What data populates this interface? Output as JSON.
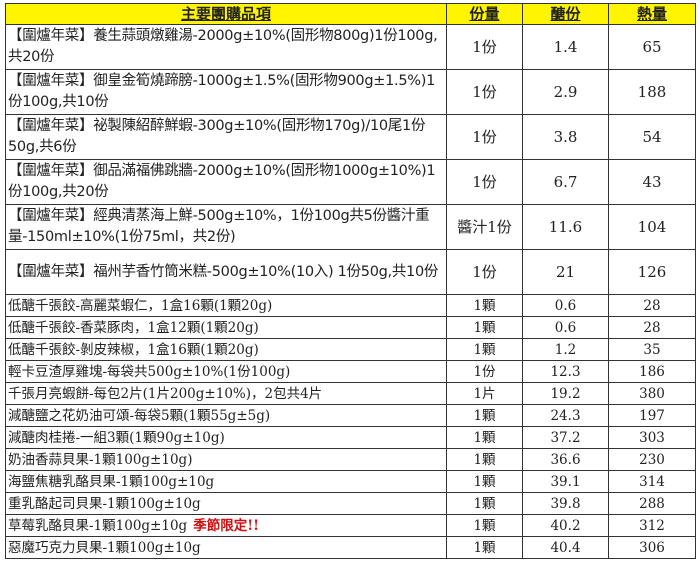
{
  "headers": [
    "主要團購品項",
    "份量",
    "醣份",
    "熱量"
  ],
  "colors": {
    "header_bg": "#fff500",
    "note": "#d01010"
  },
  "rows": [
    {
      "name": "【圍爐年菜】養生蒜頭燉雞湯-2000g±10%(固形物800g)1份100g,共20份",
      "portion": "1份",
      "sugar": "1.4",
      "calories": "65"
    },
    {
      "name": "【圍爐年菜】御皇金筍燒蹄膀-1000g±1.5%(固形物900g±1.5%)1份100g,共10份",
      "portion": "1份",
      "sugar": "2.9",
      "calories": "188"
    },
    {
      "name": "【圍爐年菜】祕製陳紹醉鮮蝦-300g±10%(固形物170g)/10尾1份50g,共6份",
      "portion": "1份",
      "sugar": "3.8",
      "calories": "54"
    },
    {
      "name": "【圍爐年菜】御品滿福佛跳牆-2000g±10%(固形物1000g±10%)1份100g,共20份",
      "portion": "1份",
      "sugar": "6.7",
      "calories": "43"
    },
    {
      "name": "【圍爐年菜】經典清蒸海上鮮-500g±10%，1份100g共5份醬汁重量-150ml±10%(1份75ml，共2份)",
      "portion": "醬汁1份",
      "sugar": "11.6",
      "calories": "104"
    },
    {
      "name": "【圍爐年菜】福州芋香竹筒米糕-500g±10%(10入) 1份50g,共10份",
      "portion": "1份",
      "sugar": "21",
      "calories": "126"
    },
    {
      "name": "低醣千張餃-高麗菜蝦仁，1盒16顆(1顆20g)",
      "portion": "1顆",
      "sugar": "0.6",
      "calories": "28"
    },
    {
      "name": "低醣千張餃-香菜豚肉，1盒12顆(1顆20g)",
      "portion": "1顆",
      "sugar": "0.6",
      "calories": "28"
    },
    {
      "name": "低醣千張餃-剝皮辣椒，1盒16顆(1顆20g)",
      "portion": "1顆",
      "sugar": "1.2",
      "calories": "35"
    },
    {
      "name": "輕卡豆渣厚雞塊-每袋共500g±10%(1份100g)",
      "portion": "1份",
      "sugar": "12.3",
      "calories": "186"
    },
    {
      "name": "千張月亮蝦餅-每包2片(1片200g±10%)，2包共4片",
      "portion": "1片",
      "sugar": "19.2",
      "calories": "380"
    },
    {
      "name": "減醣鹽之花奶油可頌-每袋5顆(1顆55g±5g)",
      "portion": "1顆",
      "sugar": "24.3",
      "calories": "197"
    },
    {
      "name": "減醣肉桂捲-一組3顆(1顆90g±10g)",
      "portion": "1顆",
      "sugar": "37.2",
      "calories": "303"
    },
    {
      "name": "奶油香蒜貝果-1顆100g±10g)",
      "portion": "1顆",
      "sugar": "36.6",
      "calories": "230"
    },
    {
      "name": "海鹽焦糖乳酪貝果-1顆100g±10g",
      "portion": "1顆",
      "sugar": "39.1",
      "calories": "314"
    },
    {
      "name": "重乳酪起司貝果-1顆100g±10g",
      "portion": "1顆",
      "sugar": "39.8",
      "calories": "288"
    },
    {
      "name": "草莓乳酪貝果-1顆100g±10g",
      "note": "季節限定!!",
      "portion": "1顆",
      "sugar": "40.2",
      "calories": "312"
    },
    {
      "name": "惡魔巧克力貝果-1顆100g±10g",
      "portion": "1顆",
      "sugar": "40.4",
      "calories": "306"
    }
  ]
}
